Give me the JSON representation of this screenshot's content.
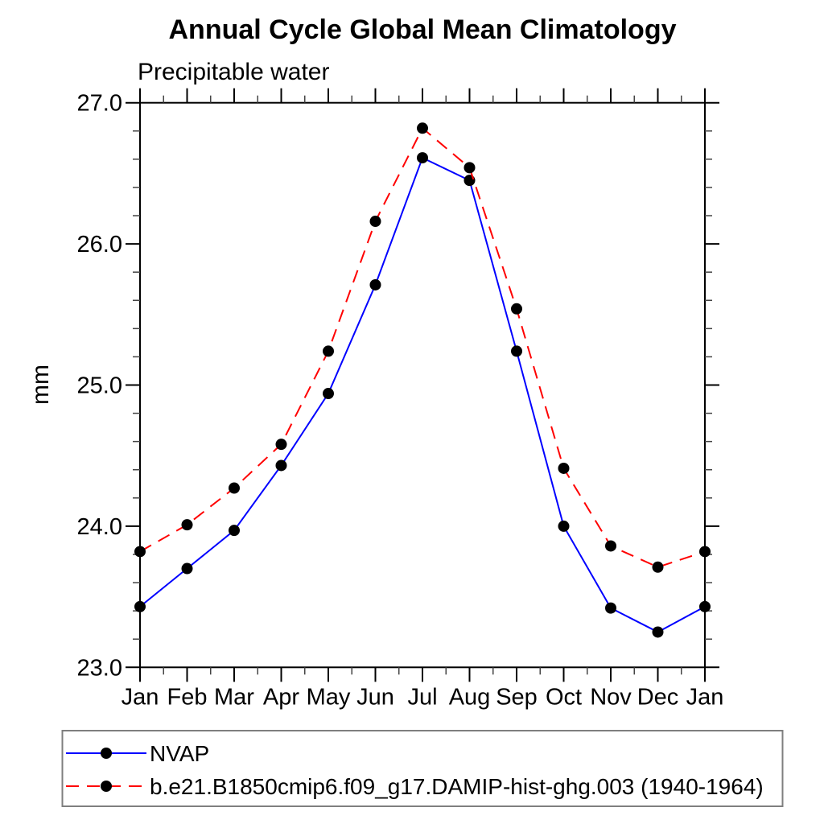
{
  "chart_data": {
    "type": "line",
    "title": "Annual Cycle Global Mean Climatology",
    "subtitle": "Precipitable water",
    "ylabel": "mm",
    "xlabel": "",
    "categories": [
      "Jan",
      "Feb",
      "Mar",
      "Apr",
      "May",
      "Jun",
      "Jul",
      "Aug",
      "Sep",
      "Oct",
      "Nov",
      "Dec",
      "Jan"
    ],
    "ylim": [
      23.0,
      27.0
    ],
    "ytick_labels": [
      "23.0",
      "24.0",
      "25.0",
      "26.0",
      "27.0"
    ],
    "yticks": [
      23.0,
      24.0,
      25.0,
      26.0,
      27.0
    ],
    "y_minor_step": 0.2,
    "grid": "off",
    "legend_position": "bottom-left-box",
    "axis_color": "#000000",
    "series": [
      {
        "name": "NVAP",
        "color": "#0000ff",
        "line_style": "solid",
        "marker": "filled-circle",
        "marker_color": "#000000",
        "values": [
          23.43,
          23.7,
          23.97,
          24.43,
          24.94,
          25.71,
          26.61,
          26.45,
          25.24,
          24.0,
          23.42,
          23.25,
          23.43
        ]
      },
      {
        "name": "b.e21.B1850cmip6.f09_g17.DAMIP-hist-ghg.003 (1940-1964)",
        "color": "#ff0000",
        "line_style": "dashed",
        "marker": "filled-circle",
        "marker_color": "#000000",
        "values": [
          23.82,
          24.01,
          24.27,
          24.58,
          25.24,
          26.16,
          26.82,
          26.54,
          25.54,
          24.41,
          23.86,
          23.71,
          23.82
        ]
      }
    ]
  }
}
